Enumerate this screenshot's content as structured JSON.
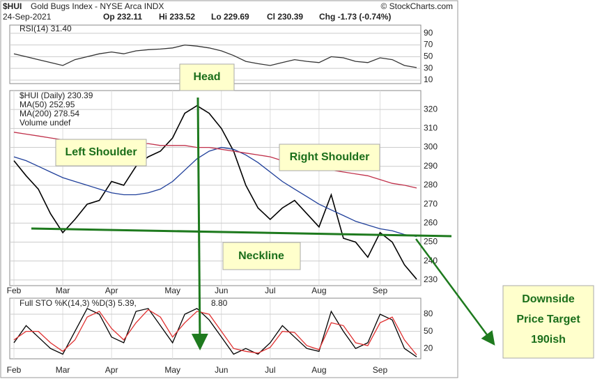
{
  "header": {
    "symbol": "$HUI",
    "name": "Gold Bugs Index - NYSE Arca INDX",
    "date": "24-Sep-2021",
    "op": "Op 232.11",
    "hi": "Hi 233.52",
    "lo": "Lo 229.69",
    "cl": "Cl 230.39",
    "chg": "Chg -1.73 (-0.74%)",
    "source": "© StockCharts.com"
  },
  "annotations": {
    "head": "Head",
    "left_shoulder": "Left Shoulder",
    "right_shoulder": "Right Shoulder",
    "neckline": "Neckline",
    "target": [
      "Downside",
      "Price Target",
      "190ish"
    ]
  },
  "chart_data": [
    {
      "type": "line",
      "label": "RSI(14) 31.40",
      "ylim": [
        4,
        104
      ],
      "yticks": [
        90,
        70,
        50,
        30,
        10
      ],
      "grid": true,
      "series": [
        {
          "color": "#333333",
          "values": [
            55,
            50,
            45,
            40,
            35,
            45,
            50,
            55,
            58,
            55,
            60,
            62,
            63,
            65,
            70,
            68,
            65,
            60,
            52,
            42,
            38,
            35,
            40,
            45,
            42,
            40,
            50,
            48,
            42,
            40,
            48,
            45,
            35,
            31.4
          ]
        }
      ]
    },
    {
      "type": "line",
      "ylim": [
        227,
        330
      ],
      "yticks": [
        230,
        240,
        250,
        260,
        270,
        280,
        290,
        300,
        310,
        320
      ],
      "grid": true,
      "note": "Volume undef",
      "categories": [
        "Feb",
        null,
        null,
        null,
        "Mar",
        null,
        null,
        null,
        "Apr",
        null,
        null,
        null,
        null,
        "May",
        null,
        null,
        null,
        "Jun",
        null,
        null,
        null,
        "Jul",
        null,
        null,
        null,
        "Aug",
        null,
        null,
        null,
        null,
        "Sep",
        null,
        null,
        null
      ],
      "series": [
        {
          "name": "$HUI (Daily) 230.39",
          "color": "#000000",
          "values": [
            293,
            285,
            278,
            265,
            255,
            262,
            270,
            272,
            282,
            280,
            290,
            295,
            298,
            305,
            318,
            322,
            318,
            310,
            298,
            280,
            268,
            262,
            268,
            272,
            265,
            258,
            275,
            252,
            250,
            242,
            255,
            250,
            238,
            230.39
          ]
        },
        {
          "name": "MA(50) 252.95",
          "color": "#1f3f9a",
          "values": [
            295,
            293,
            290,
            287,
            284,
            282,
            280,
            278,
            276,
            275,
            275,
            276,
            278,
            282,
            288,
            294,
            298,
            300,
            299,
            296,
            292,
            287,
            282,
            278,
            274,
            270,
            267,
            264,
            261,
            259,
            257,
            256,
            254,
            252.95
          ]
        },
        {
          "name": "MA(200) 278.54",
          "color": "#c0304a",
          "values": [
            308,
            307,
            306,
            305,
            304,
            304,
            304,
            303,
            303,
            302,
            302,
            302,
            301,
            301,
            301,
            300,
            300,
            299,
            298,
            297,
            296,
            295,
            293,
            292,
            291,
            289,
            288,
            287,
            286,
            285,
            283,
            281,
            280,
            278.54
          ]
        }
      ]
    },
    {
      "type": "line",
      "ylim": [
        2,
        108
      ],
      "yticks": [
        80,
        50,
        20
      ],
      "grid": true,
      "categories": [
        "Feb",
        null,
        null,
        null,
        "Mar",
        null,
        null,
        null,
        "Apr",
        null,
        null,
        null,
        null,
        "May",
        null,
        null,
        null,
        "Jun",
        null,
        null,
        null,
        "Jul",
        null,
        null,
        null,
        "Aug",
        null,
        null,
        null,
        null,
        "Sep",
        null,
        null,
        null
      ],
      "series": [
        {
          "name": "Full STO %K(14,3) %D(3) 5.39,",
          "color": "#000000",
          "values": [
            30,
            60,
            40,
            20,
            10,
            50,
            90,
            80,
            40,
            30,
            85,
            90,
            60,
            30,
            80,
            90,
            70,
            40,
            10,
            20,
            10,
            30,
            60,
            40,
            20,
            15,
            85,
            50,
            20,
            30,
            80,
            70,
            20,
            5.39
          ]
        },
        {
          "name": "8.80",
          "color": "#e03030",
          "values": [
            35,
            50,
            50,
            30,
            15,
            35,
            75,
            85,
            55,
            35,
            65,
            88,
            75,
            40,
            65,
            85,
            80,
            50,
            20,
            15,
            12,
            22,
            50,
            48,
            25,
            18,
            65,
            60,
            30,
            25,
            65,
            75,
            35,
            8.8
          ]
        }
      ]
    }
  ]
}
